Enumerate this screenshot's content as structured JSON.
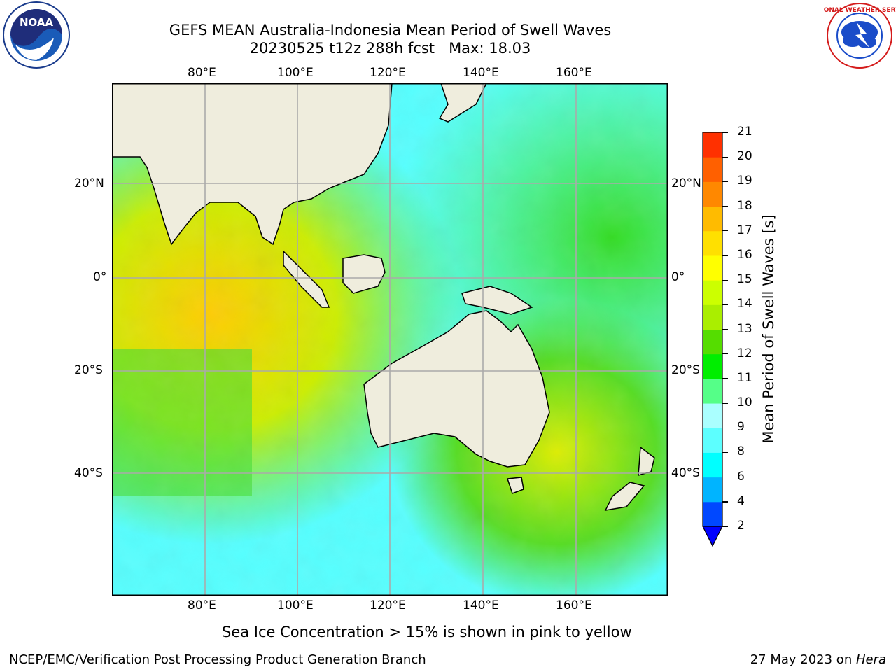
{
  "title_line1": "GEFS MEAN Australia-Indonesia Mean Period of Swell Waves",
  "title_line2": "20230525 t12z 288h fcst   Max: 18.03",
  "logos": {
    "left": "NOAA",
    "right": "NATIONAL WEATHER SERVICE"
  },
  "lon_labels": [
    "80°E",
    "100°E",
    "120°E",
    "140°E",
    "160°E"
  ],
  "lat_labels": [
    "20°N",
    "0°",
    "20°S",
    "40°S"
  ],
  "colorbar": {
    "label": "Mean Period of Swell Waves [s]",
    "ticks": [
      "2",
      "4",
      "6",
      "8",
      "9",
      "10",
      "11",
      "12",
      "13",
      "14",
      "15",
      "16",
      "17",
      "18",
      "19",
      "20",
      "21"
    ],
    "colors": [
      "#0048ff",
      "#00b4ff",
      "#00ffff",
      "#5cffff",
      "#aaffff",
      "#55ff88",
      "#00ee00",
      "#55dd00",
      "#aaee00",
      "#ccff00",
      "#ffff00",
      "#ffe000",
      "#ffbb00",
      "#ff8800",
      "#ff6000",
      "#ff3000",
      "#ff0000"
    ],
    "extend_color": "#0000ff"
  },
  "ice_note": "Sea Ice Concentration > 15% is shown in pink to yellow",
  "footer_left": "NCEP/EMC/Verification Post Processing Product Generation Branch",
  "footer_right_date": "27 May 2023 on ",
  "footer_right_machine": "Hera"
}
